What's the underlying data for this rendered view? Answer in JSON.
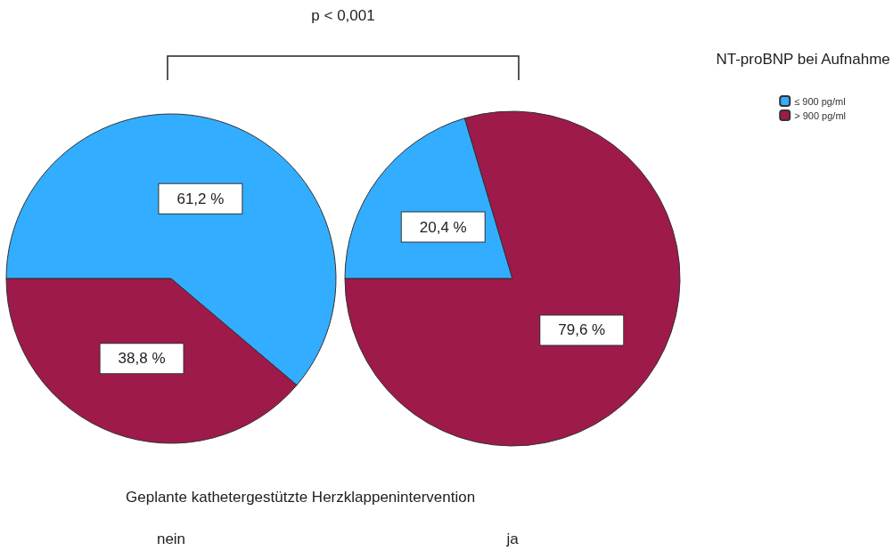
{
  "chart_data": {
    "type": "pie",
    "xlabel": "Geplante kathetergestützte Herzklappenintervention",
    "annotations": [
      "p < 0,001"
    ],
    "legend_title": "NT-proBNP bei Aufnahme",
    "legend": "top right",
    "categories": [
      "≤ 900 pg/ml",
      "> 900 pg/ml"
    ],
    "colors": [
      "#33adff",
      "#9e1a4a"
    ],
    "series": [
      {
        "name": "nein",
        "values": [
          61.2,
          38.8
        ],
        "value_labels": [
          "61,2 %",
          "38,8 %"
        ]
      },
      {
        "name": "ja",
        "values": [
          20.4,
          79.6
        ],
        "value_labels": [
          "20,4 %",
          "79,6 %"
        ]
      }
    ]
  }
}
